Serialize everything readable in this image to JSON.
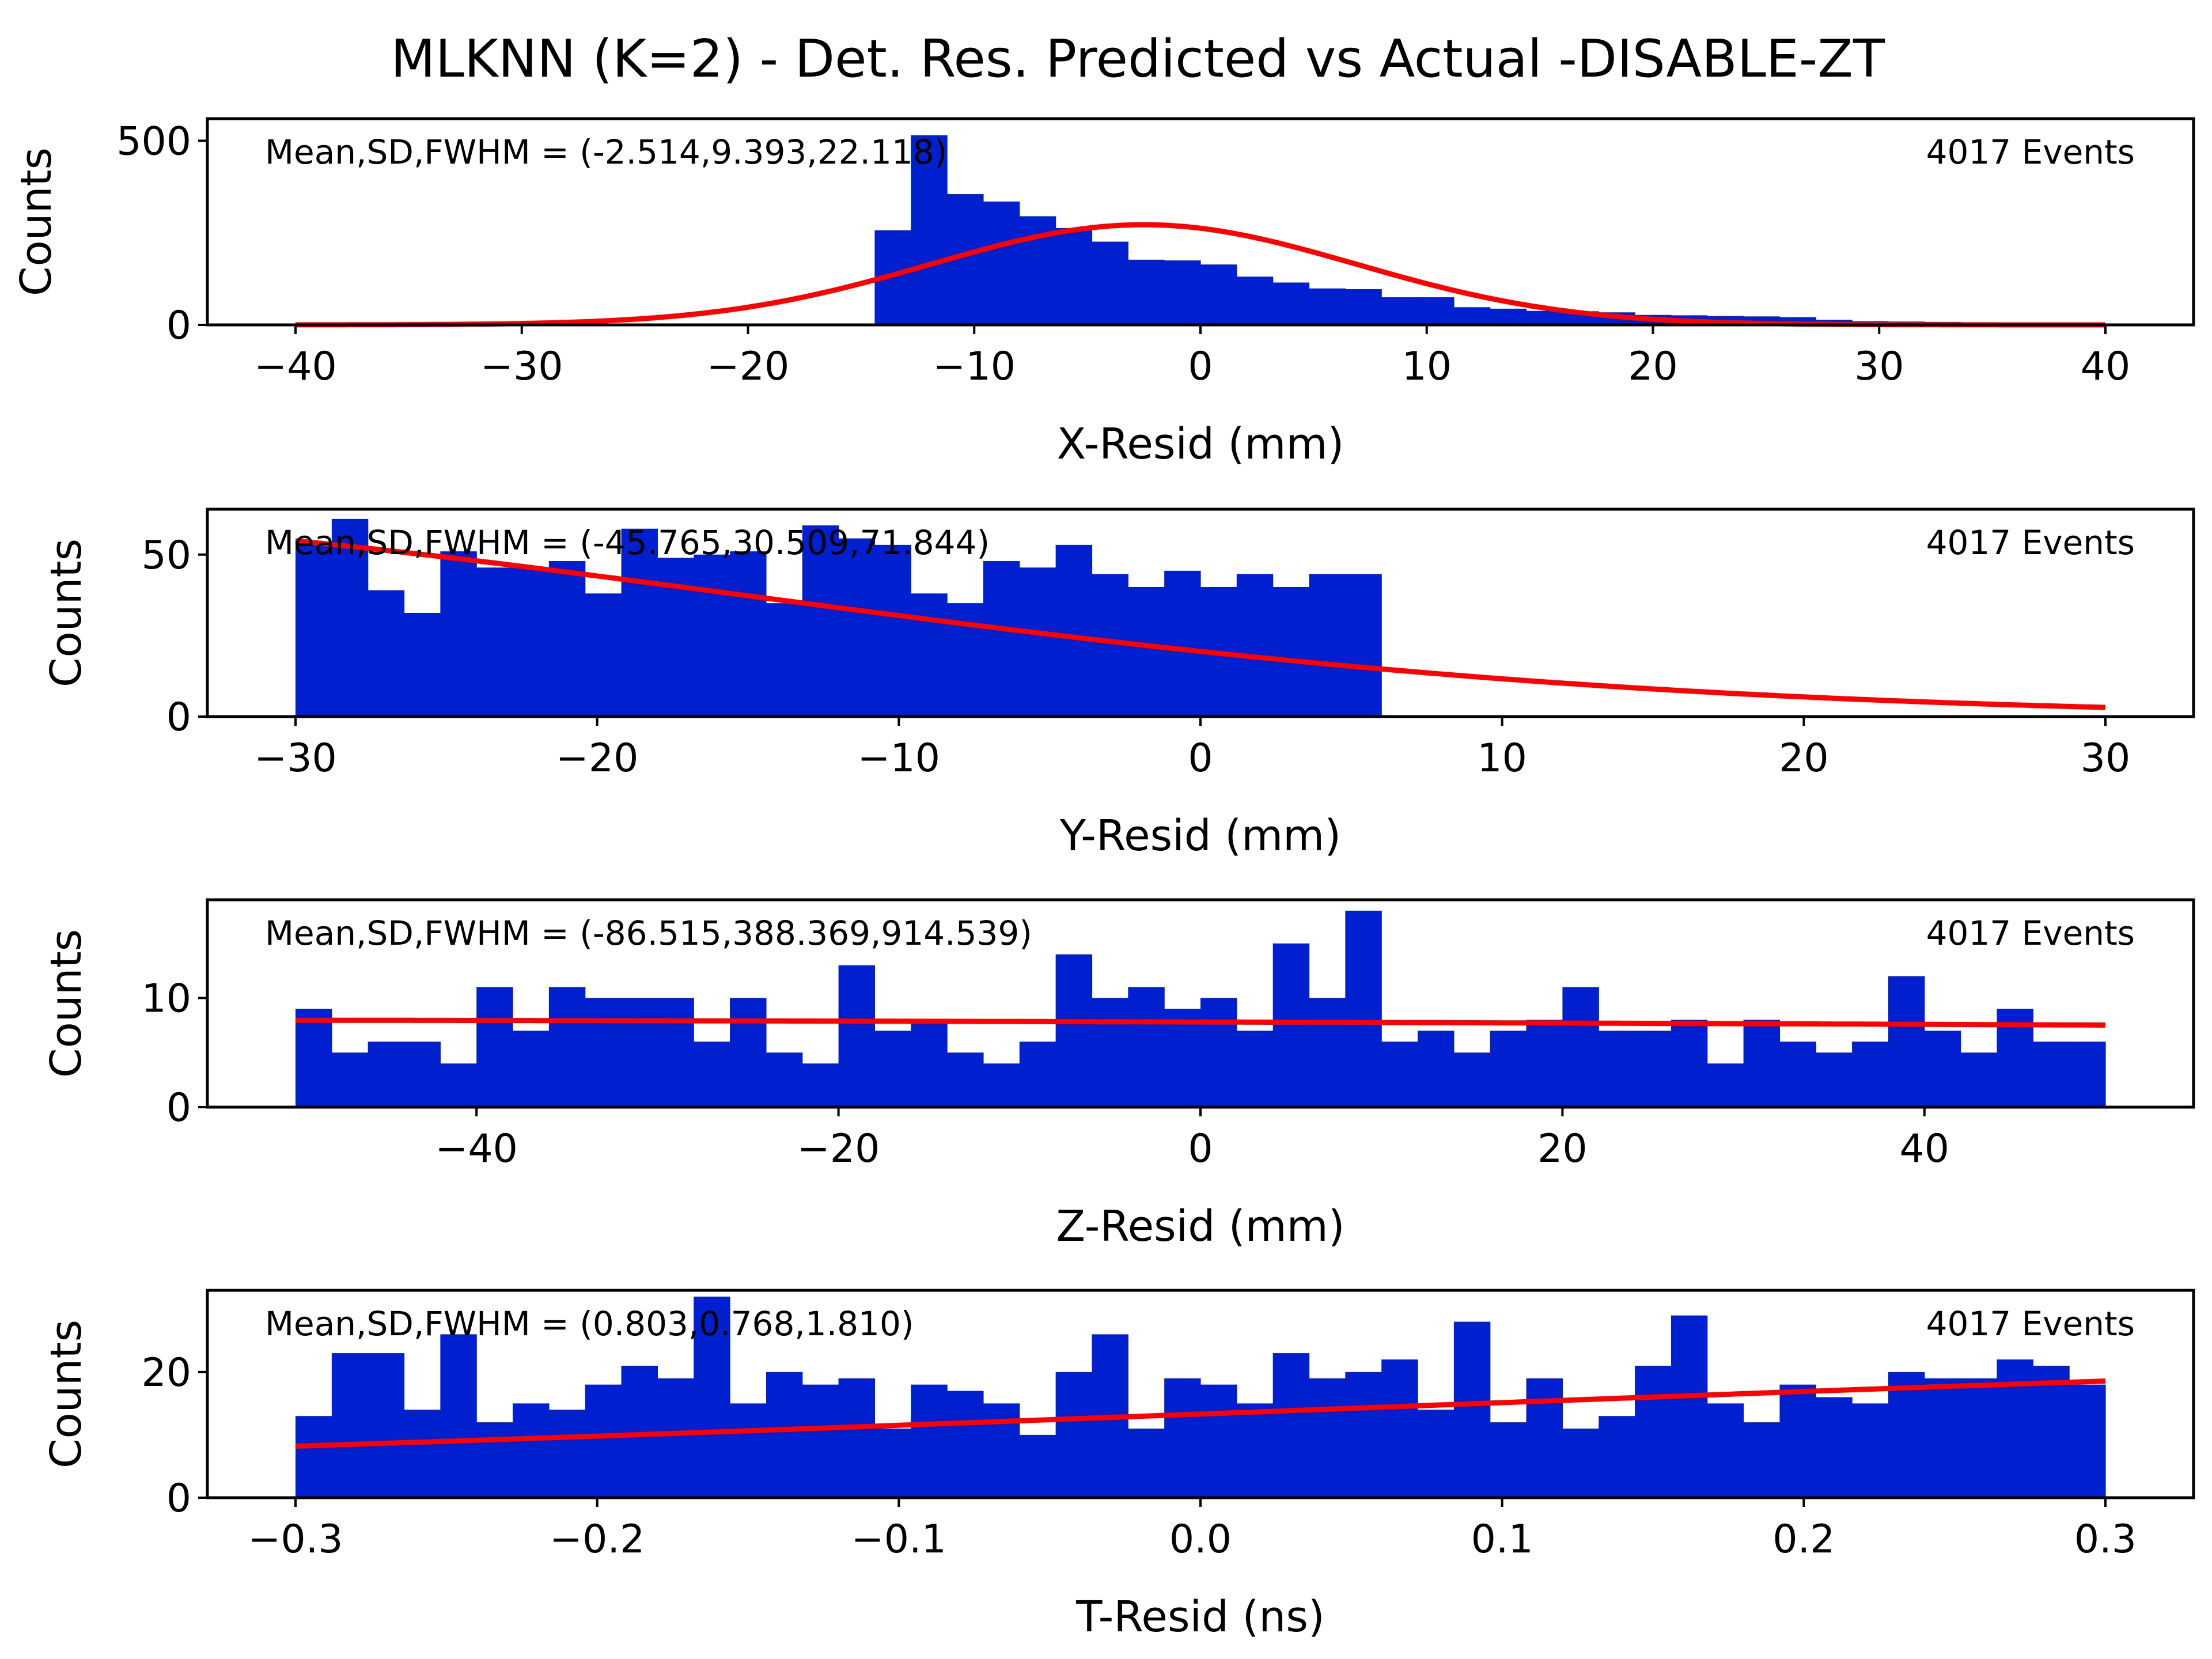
{
  "title": "MLKNN (K=2) - Det. Res. Predicted vs Actual -DISABLE-ZT",
  "colors": {
    "bar": "#0020d0",
    "fit": "#ff0000",
    "axes": "#000000"
  },
  "chart_data": [
    {
      "type": "bar",
      "name": "x-resid",
      "xlabel": "X-Resid (mm)",
      "ylabel": "Counts",
      "xlim": [
        -40,
        40
      ],
      "ylim": [
        0,
        560
      ],
      "xticks": [
        -40,
        -30,
        -20,
        -10,
        0,
        10,
        20,
        30,
        40
      ],
      "yticks": [
        0,
        500
      ],
      "stats_text": "Mean,SD,FWHM = (-2.514,9.393,22.118)",
      "events_text": "4017 Events",
      "bin_start": -40,
      "bin_width": 1.6,
      "values": [
        0,
        0,
        0,
        0,
        0,
        0,
        0,
        0,
        0,
        0,
        0,
        0,
        0,
        0,
        0,
        0,
        257,
        515,
        355,
        335,
        295,
        263,
        226,
        177,
        175,
        164,
        131,
        115,
        99,
        97,
        75,
        75,
        48,
        44,
        38,
        37,
        34,
        27,
        26,
        24,
        23,
        21,
        14,
        10,
        9,
        8,
        6,
        5,
        4,
        3
      ],
      "fit": {
        "type": "gaussian",
        "mean": -2.514,
        "sd": 9.393,
        "amplitude": 272
      }
    },
    {
      "type": "bar",
      "name": "y-resid",
      "xlabel": "Y-Resid (mm)",
      "ylabel": "Counts",
      "xlim": [
        -30,
        30
      ],
      "ylim": [
        0,
        64
      ],
      "xticks": [
        -30,
        -20,
        -10,
        0,
        10,
        20,
        30
      ],
      "yticks": [
        0,
        50
      ],
      "stats_text": "Mean,SD,FWHM = (-45.765,30.509,71.844)",
      "events_text": "4017 Events",
      "bin_start": -30,
      "bin_width": 1.2,
      "values": [
        54,
        61,
        39,
        32,
        51,
        46,
        46,
        48,
        38,
        58,
        49,
        50,
        51,
        35,
        59,
        55,
        53,
        38,
        35,
        48,
        46,
        53,
        44,
        40,
        45,
        40,
        44,
        40,
        44,
        44,
        0,
        0,
        0,
        0,
        0,
        0,
        0,
        0,
        0,
        0,
        0,
        0,
        0,
        0,
        0,
        0,
        0,
        0,
        0,
        0
      ],
      "fit": {
        "type": "gaussian",
        "mean": -45.765,
        "sd": 30.509,
        "amplitude": 62
      }
    },
    {
      "type": "bar",
      "name": "z-resid",
      "xlabel": "Z-Resid (mm)",
      "ylabel": "Counts",
      "xlim": [
        -50,
        50
      ],
      "ylim": [
        0,
        19
      ],
      "xticks": [
        -40,
        -20,
        0,
        20,
        40
      ],
      "yticks": [
        0,
        10
      ],
      "stats_text": "Mean,SD,FWHM = (-86.515,388.369,914.539)",
      "events_text": "4017 Events",
      "bin_start": -50,
      "bin_width": 2,
      "values": [
        9,
        5,
        6,
        6,
        4,
        11,
        7,
        11,
        10,
        10,
        10,
        6,
        10,
        5,
        4,
        13,
        7,
        8,
        5,
        4,
        6,
        14,
        10,
        11,
        9,
        10,
        7,
        15,
        10,
        18,
        6,
        7,
        5,
        7,
        8,
        11,
        7,
        7,
        8,
        4,
        8,
        6,
        5,
        6,
        12,
        7,
        5,
        9,
        6,
        6
      ],
      "fit": {
        "type": "gaussian",
        "mean": -86.515,
        "sd": 388.369,
        "amplitude": 8.0
      }
    },
    {
      "type": "bar",
      "name": "t-resid",
      "xlabel": "T-Resid (ns)",
      "ylabel": "Counts",
      "xlim": [
        -0.3,
        0.3
      ],
      "ylim": [
        0,
        33
      ],
      "xticks": [
        -0.3,
        -0.2,
        -0.1,
        0.0,
        0.1,
        0.2,
        0.3
      ],
      "ytick_labels_fixed": 1,
      "yticks": [
        0,
        20
      ],
      "stats_text": "Mean,SD,FWHM = (0.803,0.768,1.810)",
      "events_text": "4017 Events",
      "bin_start": -0.3,
      "bin_width": 0.012,
      "values": [
        13,
        23,
        23,
        14,
        26,
        12,
        15,
        14,
        18,
        21,
        19,
        32,
        15,
        20,
        18,
        19,
        11,
        18,
        17,
        15,
        10,
        20,
        26,
        11,
        19,
        18,
        15,
        23,
        19,
        20,
        22,
        14,
        28,
        12,
        19,
        11,
        13,
        21,
        29,
        15,
        12,
        18,
        16,
        15,
        20,
        19,
        19,
        22,
        21,
        18
      ],
      "fit": {
        "type": "gaussian",
        "mean": 0.803,
        "sd": 0.768,
        "amplitude": 23
      }
    }
  ]
}
